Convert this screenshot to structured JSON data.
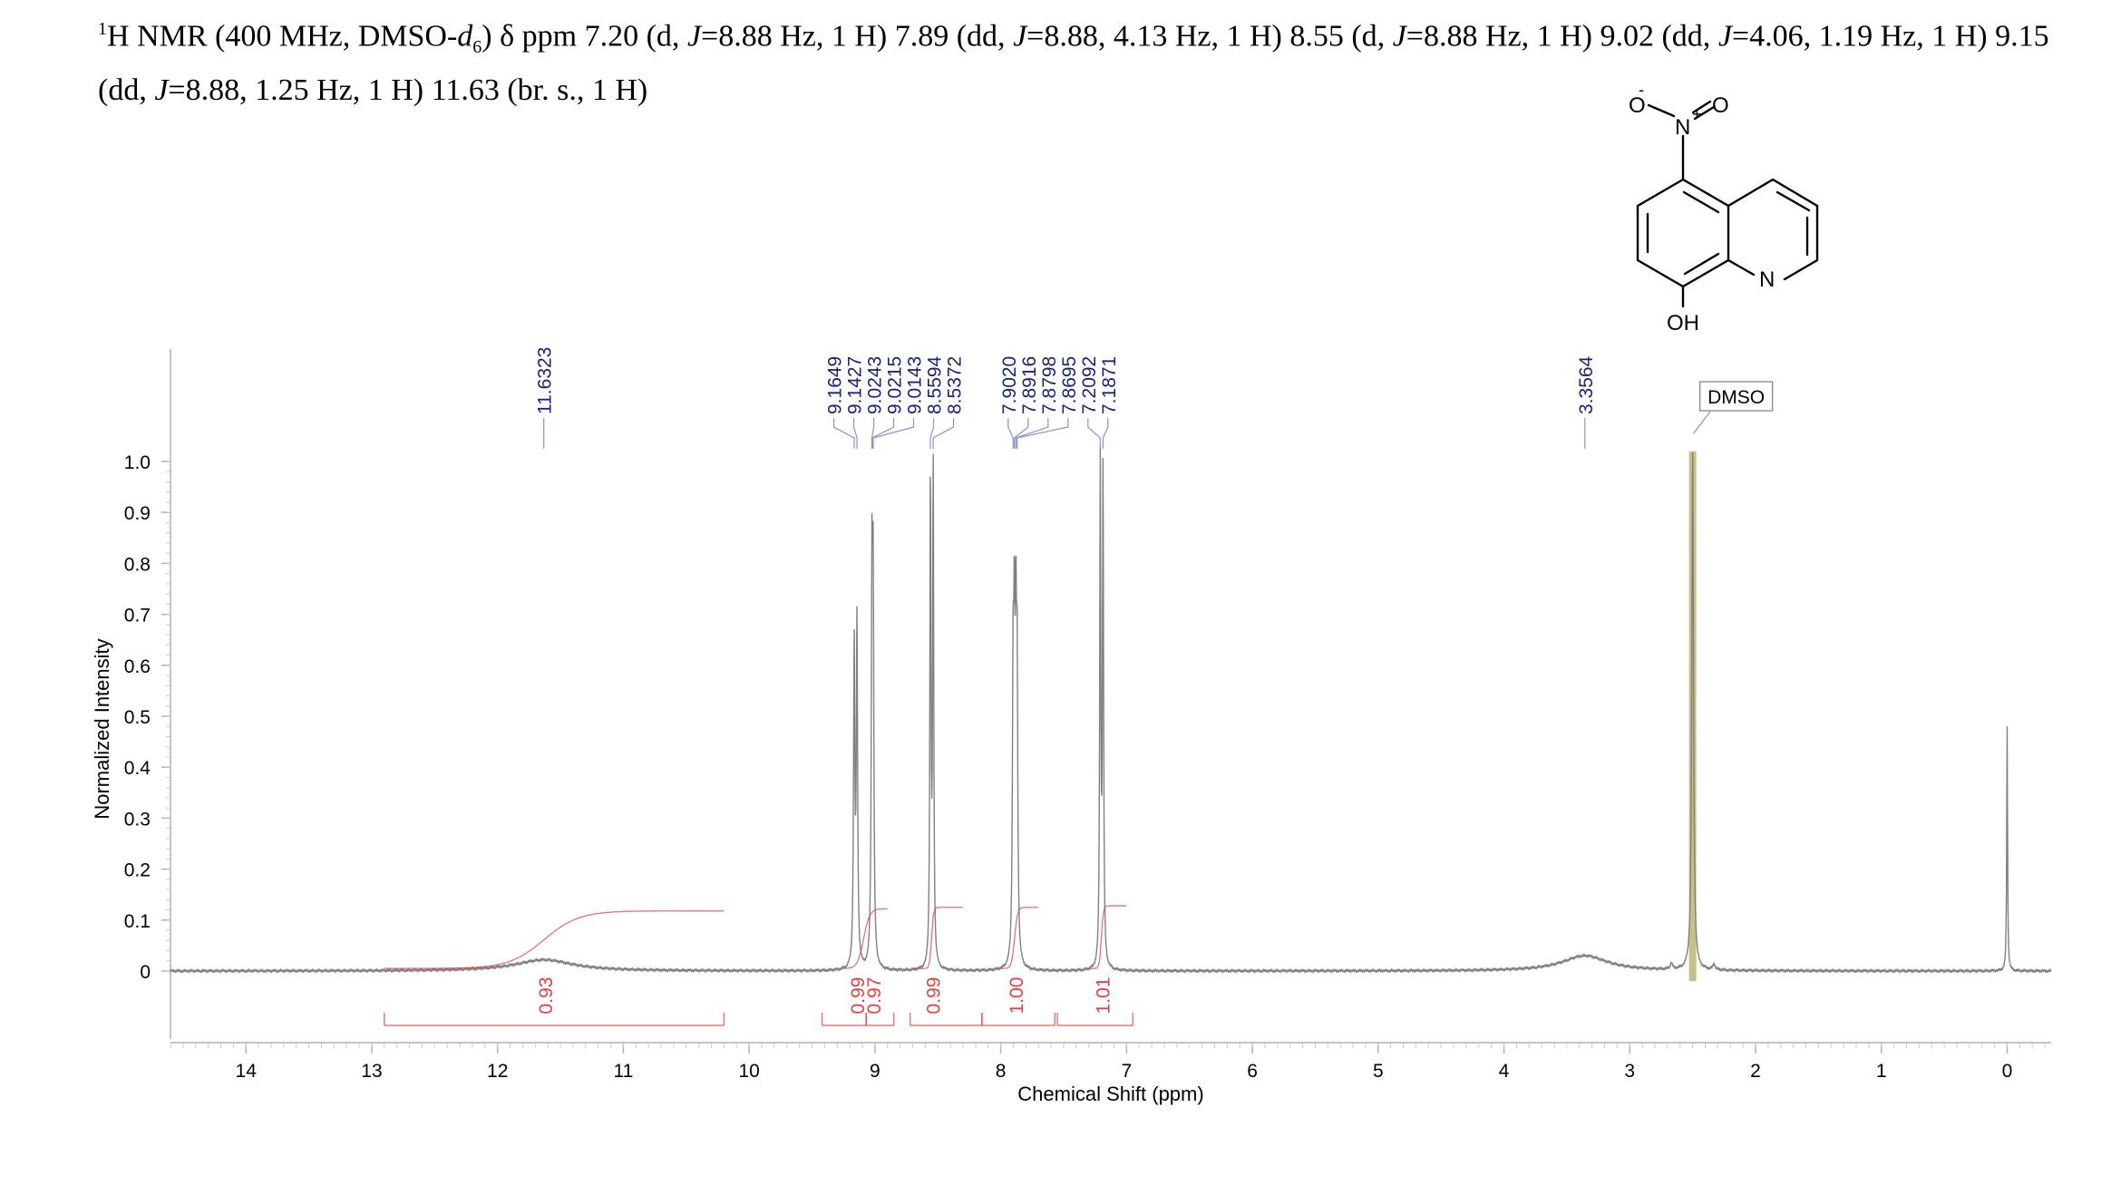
{
  "header": {
    "nucleus_mass": "1",
    "nucleus_rest": "H NMR (400 MHz, DMSO-",
    "solvent_italic": "d",
    "solvent_sub": "6",
    "close_paren": ")",
    "delta": "δ",
    "peaks_text": [
      {
        "t": " ppm 7.20 (d, "
      },
      {
        "t": "J",
        "i": true
      },
      {
        "t": "=8.88 Hz, 1 H) 7.89 (dd, "
      },
      {
        "t": "J",
        "i": true
      },
      {
        "t": "=8.88, 4.13 Hz, 1 H) 8.55 (d, "
      },
      {
        "t": "J",
        "i": true
      },
      {
        "t": "=8.88 Hz, 1 H) 9.02 (dd, "
      },
      {
        "t": "J",
        "i": true
      },
      {
        "t": "=4.06, 1.19 Hz, 1 H) 9.15 (dd, "
      },
      {
        "t": "J",
        "i": true
      },
      {
        "t": "=8.88, 1.25 Hz, 1 H) 11.63 (br. s., 1 H)"
      }
    ]
  },
  "structure": {
    "atoms": {
      "O_minus": "O",
      "minus": "-",
      "N_plus": "N",
      "plus": "+",
      "O_double": "O",
      "N_ring": "N",
      "OH": "OH"
    }
  },
  "chart_data": {
    "type": "line",
    "xlabel": "Chemical Shift (ppm)",
    "ylabel": "Normalized Intensity",
    "xlim": [
      14.6,
      -0.35
    ],
    "ylim": [
      0,
      1.0
    ],
    "x_ticks": [
      14,
      13,
      12,
      11,
      10,
      9,
      8,
      7,
      6,
      5,
      4,
      3,
      2,
      1,
      0
    ],
    "y_ticks": [
      0,
      0.1,
      0.2,
      0.3,
      0.4,
      0.5,
      0.6,
      0.7,
      0.8,
      0.9,
      1.0
    ],
    "colors": {
      "spectrum": "#808080",
      "integral": "#e04040",
      "peak_label": "#1a237e",
      "solvent_highlight": "#c8c088"
    },
    "peak_labels": [
      {
        "label": "11.6323",
        "x": 11.6323
      },
      {
        "label": "9.1649",
        "x": 9.1649
      },
      {
        "label": "9.1427",
        "x": 9.1427
      },
      {
        "label": "9.0243",
        "x": 9.0243
      },
      {
        "label": "9.0215",
        "x": 9.0215
      },
      {
        "label": "9.0143",
        "x": 9.0143
      },
      {
        "label": "8.5594",
        "x": 8.5594
      },
      {
        "label": "8.5372",
        "x": 8.5372
      },
      {
        "label": "7.9020",
        "x": 7.902
      },
      {
        "label": "7.8916",
        "x": 7.8916
      },
      {
        "label": "7.8798",
        "x": 7.8798
      },
      {
        "label": "7.8695",
        "x": 7.8695
      },
      {
        "label": "7.2092",
        "x": 7.2092
      },
      {
        "label": "7.1871",
        "x": 7.1871
      },
      {
        "label": "3.3564",
        "x": 3.3564
      }
    ],
    "solvent_label": {
      "label": "DMSO",
      "x": 2.5
    },
    "peaks": [
      {
        "x": 11.63,
        "h": 0.022,
        "w": 0.28
      },
      {
        "x": 9.165,
        "h": 0.63,
        "w": 0.006
      },
      {
        "x": 9.143,
        "h": 0.67,
        "w": 0.006
      },
      {
        "x": 9.024,
        "h": 0.71,
        "w": 0.006
      },
      {
        "x": 9.014,
        "h": 0.68,
        "w": 0.006
      },
      {
        "x": 8.559,
        "h": 0.98,
        "w": 0.005
      },
      {
        "x": 8.537,
        "h": 0.99,
        "w": 0.005
      },
      {
        "x": 7.902,
        "h": 0.52,
        "w": 0.006
      },
      {
        "x": 7.892,
        "h": 0.55,
        "w": 0.006
      },
      {
        "x": 7.88,
        "h": 0.55,
        "w": 0.006
      },
      {
        "x": 7.87,
        "h": 0.52,
        "w": 0.006
      },
      {
        "x": 7.209,
        "h": 0.99,
        "w": 0.005
      },
      {
        "x": 7.187,
        "h": 0.98,
        "w": 0.005
      },
      {
        "x": 3.356,
        "h": 0.03,
        "w": 0.22
      },
      {
        "x": 2.5,
        "h": 1.02,
        "w": 0.008
      },
      {
        "x": 2.67,
        "h": 0.012,
        "w": 0.01
      },
      {
        "x": 2.33,
        "h": 0.012,
        "w": 0.01
      },
      {
        "x": 0.0,
        "h": 0.48,
        "w": 0.004
      }
    ],
    "integrals": [
      {
        "label": "0.93",
        "from": 12.9,
        "to": 10.2,
        "center": 11.63
      },
      {
        "label": "0.99",
        "from": 9.42,
        "to": 9.07,
        "center": 9.15
      },
      {
        "label": "0.97",
        "from": 9.07,
        "to": 8.85,
        "center": 9.02
      },
      {
        "label": "0.99",
        "from": 8.72,
        "to": 8.15,
        "center": 8.55
      },
      {
        "label": "1.00",
        "from": 8.15,
        "to": 7.57,
        "center": 7.89
      },
      {
        "label": "1.01",
        "from": 7.55,
        "to": 6.95,
        "center": 7.2
      }
    ],
    "integral_curves": [
      {
        "from": 12.9,
        "to": 10.2,
        "center": 11.63,
        "width": 0.35,
        "level": 0.118
      },
      {
        "from": 9.25,
        "to": 8.9,
        "center": 9.09,
        "width": 0.06,
        "level": 0.122
      },
      {
        "from": 8.7,
        "to": 8.3,
        "center": 8.55,
        "width": 0.02,
        "level": 0.125
      },
      {
        "from": 8.0,
        "to": 7.7,
        "center": 7.89,
        "width": 0.03,
        "level": 0.125
      },
      {
        "from": 7.3,
        "to": 7.0,
        "center": 7.2,
        "width": 0.02,
        "level": 0.128
      }
    ]
  }
}
